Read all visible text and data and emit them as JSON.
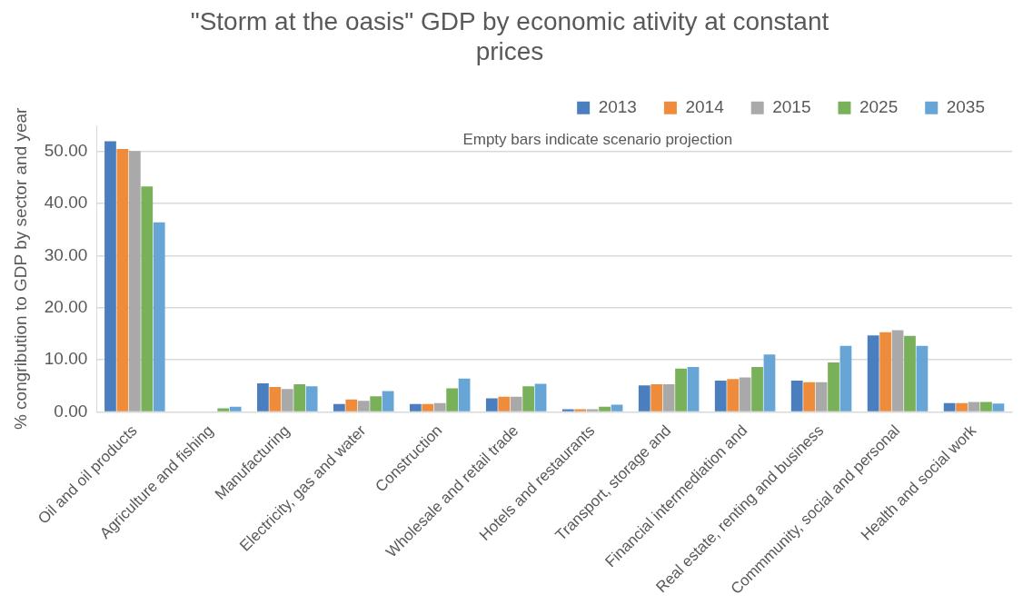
{
  "chart_data": {
    "type": "bar",
    "title": "\"Storm at the oasis\" GDP by economic ativity at constant prices",
    "ylabel": "% congribution to GDP by sector and year",
    "annotations": [
      "Empty bars indicate scenario projection"
    ],
    "categories": [
      "Oil and oil products",
      "Agriculture and fishing",
      "Manufacturing",
      "Electricity, gas and water",
      "Construction",
      "Wholesale and retail trade",
      "Hotels and restaurants",
      "Transport, storage and",
      "Financial intermediation and",
      "Real estate, renting and business",
      "Commmunity, social and personal",
      "Health and social work"
    ],
    "series": [
      {
        "name": "2013",
        "color": "#4a7ebf",
        "values": [
          52.0,
          0,
          5.5,
          1.5,
          1.5,
          2.6,
          0.5,
          5.1,
          6.0,
          6.0,
          14.7,
          1.7
        ]
      },
      {
        "name": "2014",
        "color": "#ef8c3b",
        "values": [
          50.5,
          0,
          4.8,
          2.4,
          1.5,
          2.9,
          0.5,
          5.3,
          6.3,
          5.7,
          15.3,
          1.7
        ]
      },
      {
        "name": "2015",
        "color": "#a9a9a9",
        "values": [
          50.1,
          0,
          4.4,
          2.1,
          1.7,
          2.9,
          0.5,
          5.3,
          6.6,
          5.7,
          15.7,
          1.9
        ]
      },
      {
        "name": "2025",
        "color": "#79b05a",
        "values": [
          43.3,
          0.7,
          5.3,
          3.0,
          4.5,
          4.9,
          1.0,
          8.3,
          8.6,
          9.5,
          14.6,
          1.9
        ]
      },
      {
        "name": "2035",
        "color": "#66a5d6",
        "values": [
          36.4,
          1.0,
          4.9,
          4.0,
          6.4,
          5.4,
          1.4,
          8.6,
          11.0,
          12.7,
          12.7,
          1.6
        ]
      }
    ],
    "ylim": [
      0,
      55
    ],
    "yticks": [
      {
        "value": 0,
        "label": "0.00"
      },
      {
        "value": 10,
        "label": "10.00"
      },
      {
        "value": 20,
        "label": "20.00"
      },
      {
        "value": 30,
        "label": "30.00"
      },
      {
        "value": 40,
        "label": "40.00"
      },
      {
        "value": 50,
        "label": "50.00"
      }
    ],
    "grid": "y",
    "legend": "top right"
  }
}
